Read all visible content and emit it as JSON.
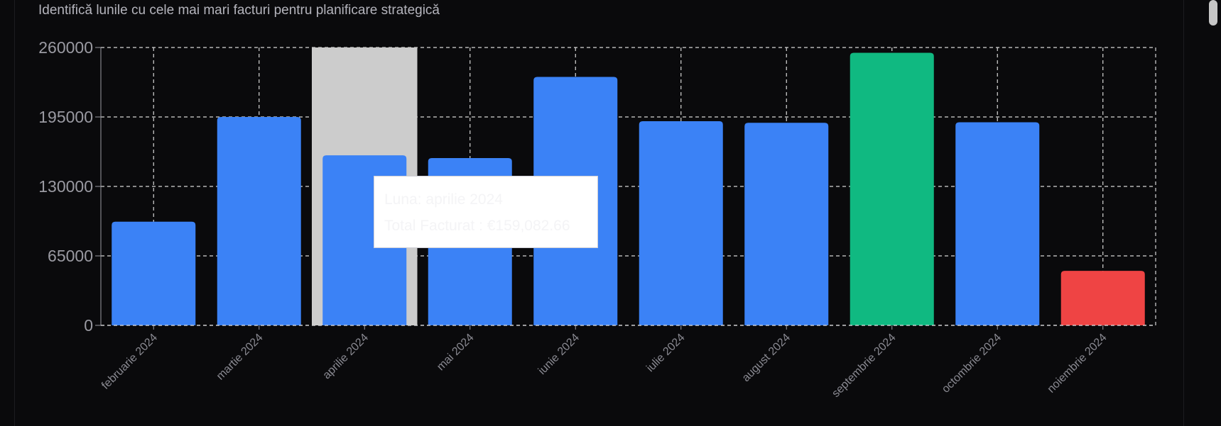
{
  "subtitle": "Identifică lunile cu cele mai mari facturi pentru planificare strategică",
  "colors": {
    "default": "#3b82f6",
    "max": "#10b981",
    "min": "#ef4444",
    "hover": "#cccccc"
  },
  "tooltip": {
    "month_line": "Luna: aprilie 2024",
    "total_line": "Total Facturat : €159,082.66"
  },
  "chart_data": {
    "type": "bar",
    "categories": [
      "februarie 2024",
      "martie 2024",
      "aprilie 2024",
      "mai 2024",
      "iunie 2024",
      "iulie 2024",
      "august 2024",
      "septembrie 2024",
      "octombrie 2024",
      "noiembrie 2024"
    ],
    "values": [
      97000,
      195000,
      159082.66,
      156500,
      232500,
      191000,
      189500,
      255000,
      190000,
      51000
    ],
    "ylim": [
      0,
      260000
    ],
    "yticks": [
      0,
      65000,
      130000,
      195000,
      260000
    ],
    "grid": true,
    "highlight": {
      "max_index": 7,
      "min_index": 9,
      "hover_index": 2
    }
  }
}
